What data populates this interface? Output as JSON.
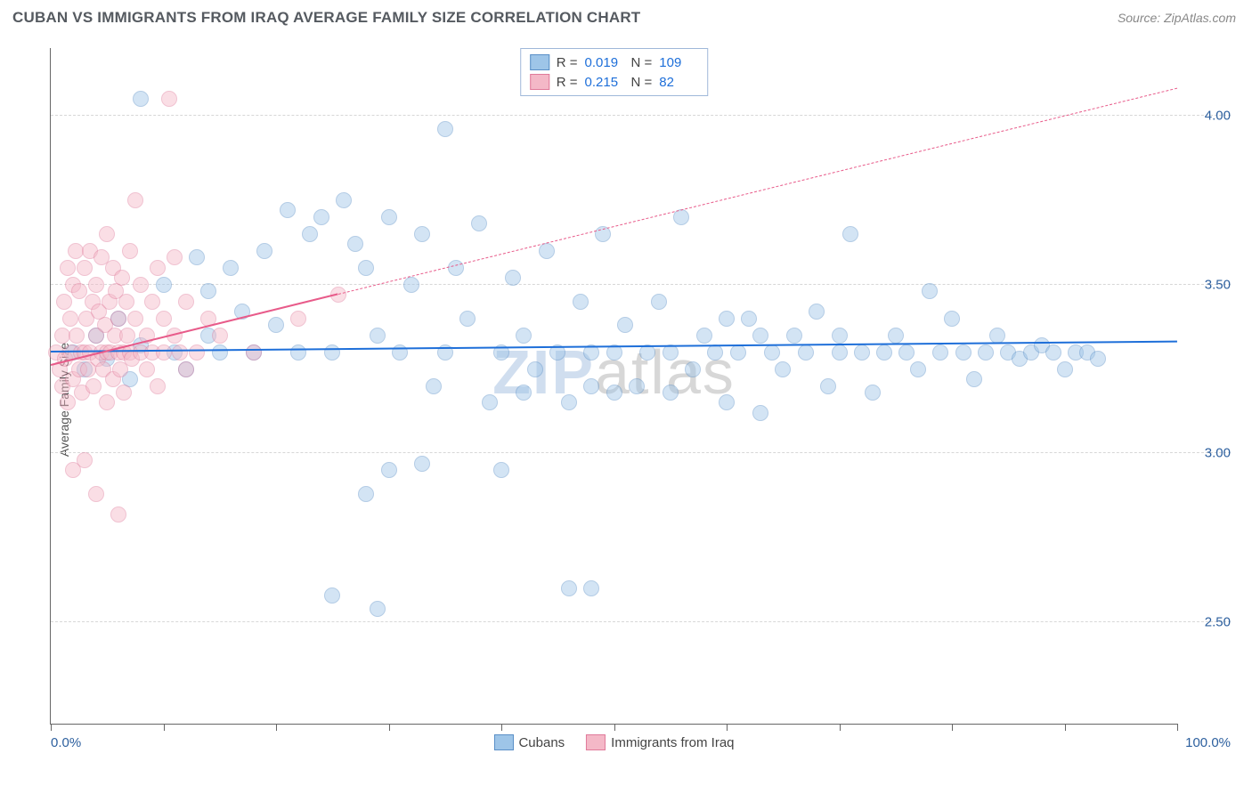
{
  "title": "CUBAN VS IMMIGRANTS FROM IRAQ AVERAGE FAMILY SIZE CORRELATION CHART",
  "source": "Source: ZipAtlas.com",
  "y_axis_label": "Average Family Size",
  "watermark_a": "ZIP",
  "watermark_b": "atlas",
  "chart": {
    "type": "scatter",
    "xlim": [
      0,
      100
    ],
    "ylim": [
      2.2,
      4.2
    ],
    "x_start_label": "0.0%",
    "x_end_label": "100.0%",
    "yticks": [
      2.5,
      3.0,
      3.5,
      4.0
    ],
    "ytick_labels": [
      "2.50",
      "3.00",
      "3.50",
      "4.00"
    ],
    "xtick_positions": [
      0,
      10,
      20,
      30,
      40,
      50,
      60,
      70,
      80,
      90,
      100
    ],
    "grid_color": "#d7d7d7",
    "axis_color": "#666666",
    "tick_label_color": "#2c5f9e",
    "background_color": "#ffffff",
    "point_radius": 9,
    "point_opacity": 0.45,
    "series": [
      {
        "name": "Cubans",
        "fill": "#9ec5e8",
        "stroke": "#5a8fc7",
        "R": "0.019",
        "N": "109",
        "trend": {
          "x1": 0,
          "y1": 3.3,
          "x2": 100,
          "y2": 3.33,
          "color": "#1e6fd9",
          "width": 2.5,
          "dash": false
        },
        "points": [
          [
            2,
            3.3
          ],
          [
            3,
            3.25
          ],
          [
            4,
            3.35
          ],
          [
            5,
            3.28
          ],
          [
            6,
            3.4
          ],
          [
            7,
            3.22
          ],
          [
            8,
            3.32
          ],
          [
            8,
            4.05
          ],
          [
            10,
            3.5
          ],
          [
            11,
            3.3
          ],
          [
            12,
            3.25
          ],
          [
            13,
            3.58
          ],
          [
            14,
            3.48
          ],
          [
            14,
            3.35
          ],
          [
            15,
            3.3
          ],
          [
            16,
            3.55
          ],
          [
            17,
            3.42
          ],
          [
            18,
            3.3
          ],
          [
            19,
            3.6
          ],
          [
            20,
            3.38
          ],
          [
            21,
            3.72
          ],
          [
            22,
            3.3
          ],
          [
            23,
            3.65
          ],
          [
            24,
            3.7
          ],
          [
            25,
            3.3
          ],
          [
            25,
            2.58
          ],
          [
            26,
            3.75
          ],
          [
            27,
            3.62
          ],
          [
            28,
            2.88
          ],
          [
            28,
            3.55
          ],
          [
            29,
            3.35
          ],
          [
            30,
            3.7
          ],
          [
            30,
            2.95
          ],
          [
            31,
            3.3
          ],
          [
            32,
            3.5
          ],
          [
            33,
            3.65
          ],
          [
            34,
            3.2
          ],
          [
            35,
            3.96
          ],
          [
            35,
            3.3
          ],
          [
            36,
            3.55
          ],
          [
            37,
            3.4
          ],
          [
            38,
            3.68
          ],
          [
            39,
            3.15
          ],
          [
            40,
            3.3
          ],
          [
            40,
            2.95
          ],
          [
            41,
            3.52
          ],
          [
            42,
            3.35
          ],
          [
            43,
            3.25
          ],
          [
            44,
            3.6
          ],
          [
            45,
            3.3
          ],
          [
            46,
            3.15
          ],
          [
            46,
            2.6
          ],
          [
            47,
            3.45
          ],
          [
            48,
            3.3
          ],
          [
            48,
            3.2
          ],
          [
            49,
            3.65
          ],
          [
            50,
            3.3
          ],
          [
            51,
            3.38
          ],
          [
            52,
            3.2
          ],
          [
            53,
            3.3
          ],
          [
            54,
            3.45
          ],
          [
            55,
            3.3
          ],
          [
            56,
            3.7
          ],
          [
            57,
            3.25
          ],
          [
            58,
            3.35
          ],
          [
            59,
            3.3
          ],
          [
            60,
            3.15
          ],
          [
            61,
            3.3
          ],
          [
            62,
            3.4
          ],
          [
            63,
            3.12
          ],
          [
            64,
            3.3
          ],
          [
            65,
            3.25
          ],
          [
            66,
            3.35
          ],
          [
            67,
            3.3
          ],
          [
            68,
            3.42
          ],
          [
            69,
            3.2
          ],
          [
            70,
            3.3
          ],
          [
            71,
            3.65
          ],
          [
            72,
            3.3
          ],
          [
            73,
            3.18
          ],
          [
            74,
            3.3
          ],
          [
            75,
            3.35
          ],
          [
            76,
            3.3
          ],
          [
            77,
            3.25
          ],
          [
            78,
            3.48
          ],
          [
            79,
            3.3
          ],
          [
            80,
            3.4
          ],
          [
            81,
            3.3
          ],
          [
            82,
            3.22
          ],
          [
            83,
            3.3
          ],
          [
            84,
            3.35
          ],
          [
            85,
            3.3
          ],
          [
            86,
            3.28
          ],
          [
            87,
            3.3
          ],
          [
            88,
            3.32
          ],
          [
            89,
            3.3
          ],
          [
            90,
            3.25
          ],
          [
            91,
            3.3
          ],
          [
            92,
            3.3
          ],
          [
            93,
            3.28
          ],
          [
            29,
            2.54
          ],
          [
            33,
            2.97
          ],
          [
            55,
            3.18
          ],
          [
            60,
            3.4
          ],
          [
            70,
            3.35
          ],
          [
            48,
            2.6
          ],
          [
            63,
            3.35
          ],
          [
            50,
            3.18
          ],
          [
            42,
            3.18
          ]
        ]
      },
      {
        "name": "Immigrants from Iraq",
        "fill": "#f4b8c7",
        "stroke": "#e07a9a",
        "R": "0.215",
        "N": "82",
        "trend": {
          "x1": 0,
          "y1": 3.26,
          "x2": 25.5,
          "y2": 3.47,
          "color": "#e85b8a",
          "width": 2.5,
          "dash": false
        },
        "trend_ext": {
          "x1": 25.5,
          "y1": 3.47,
          "x2": 100,
          "y2": 4.08,
          "color": "#e85b8a",
          "width": 1.2,
          "dash": true
        },
        "points": [
          [
            0.5,
            3.3
          ],
          [
            0.8,
            3.25
          ],
          [
            1,
            3.35
          ],
          [
            1,
            3.2
          ],
          [
            1.2,
            3.45
          ],
          [
            1.3,
            3.28
          ],
          [
            1.5,
            3.55
          ],
          [
            1.5,
            3.15
          ],
          [
            1.7,
            3.4
          ],
          [
            1.8,
            3.3
          ],
          [
            2,
            3.5
          ],
          [
            2,
            3.22
          ],
          [
            2,
            2.95
          ],
          [
            2.2,
            3.6
          ],
          [
            2.3,
            3.35
          ],
          [
            2.5,
            3.25
          ],
          [
            2.5,
            3.48
          ],
          [
            2.7,
            3.3
          ],
          [
            2.8,
            3.18
          ],
          [
            3,
            3.55
          ],
          [
            3,
            3.3
          ],
          [
            3,
            2.98
          ],
          [
            3.2,
            3.4
          ],
          [
            3.3,
            3.25
          ],
          [
            3.5,
            3.6
          ],
          [
            3.5,
            3.3
          ],
          [
            3.7,
            3.45
          ],
          [
            3.8,
            3.2
          ],
          [
            4,
            3.35
          ],
          [
            4,
            3.5
          ],
          [
            4,
            2.88
          ],
          [
            4.2,
            3.28
          ],
          [
            4.3,
            3.42
          ],
          [
            4.5,
            3.3
          ],
          [
            4.5,
            3.58
          ],
          [
            4.7,
            3.25
          ],
          [
            4.8,
            3.38
          ],
          [
            5,
            3.3
          ],
          [
            5,
            3.65
          ],
          [
            5,
            3.15
          ],
          [
            5.2,
            3.45
          ],
          [
            5.3,
            3.3
          ],
          [
            5.5,
            3.55
          ],
          [
            5.5,
            3.22
          ],
          [
            5.7,
            3.35
          ],
          [
            5.8,
            3.48
          ],
          [
            6,
            3.3
          ],
          [
            6,
            3.4
          ],
          [
            6,
            2.82
          ],
          [
            6.2,
            3.25
          ],
          [
            6.3,
            3.52
          ],
          [
            6.5,
            3.3
          ],
          [
            6.5,
            3.18
          ],
          [
            6.7,
            3.45
          ],
          [
            6.8,
            3.35
          ],
          [
            7,
            3.3
          ],
          [
            7,
            3.6
          ],
          [
            7.2,
            3.28
          ],
          [
            7.5,
            3.4
          ],
          [
            7.5,
            3.75
          ],
          [
            8,
            3.3
          ],
          [
            8,
            3.5
          ],
          [
            8.5,
            3.35
          ],
          [
            8.5,
            3.25
          ],
          [
            9,
            3.3
          ],
          [
            9,
            3.45
          ],
          [
            9.5,
            3.55
          ],
          [
            9.5,
            3.2
          ],
          [
            10,
            3.3
          ],
          [
            10,
            3.4
          ],
          [
            10.5,
            4.05
          ],
          [
            11,
            3.35
          ],
          [
            11,
            3.58
          ],
          [
            11.5,
            3.3
          ],
          [
            12,
            3.45
          ],
          [
            12,
            3.25
          ],
          [
            13,
            3.3
          ],
          [
            14,
            3.4
          ],
          [
            15,
            3.35
          ],
          [
            18,
            3.3
          ],
          [
            22,
            3.4
          ],
          [
            25.5,
            3.47
          ]
        ]
      }
    ]
  },
  "legend_bottom": [
    {
      "label": "Cubans",
      "fill": "#9ec5e8",
      "stroke": "#5a8fc7"
    },
    {
      "label": "Immigrants from Iraq",
      "fill": "#f4b8c7",
      "stroke": "#e07a9a"
    }
  ]
}
